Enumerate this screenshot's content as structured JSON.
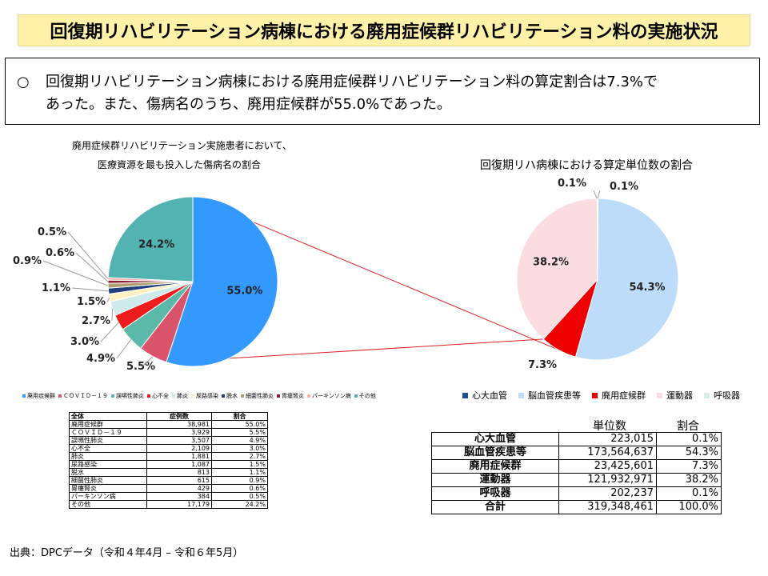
{
  "title": "回復期リハビリテーション病棟における廃用症候群リハビリテーション料の実施状況",
  "summary": {
    "bullet": "○",
    "line1": "回復期リハビリテーション病棟における廃用症候群リハビリテーション料の算定割合は7.3%で",
    "line2": "あった。また、傷病名のうち、廃用症候群が55.0%であった。"
  },
  "left_caption": {
    "line1": "廃用症候群リハビリテーション実施患者において、",
    "line2": "医療資源を最も投入した傷病名の割合"
  },
  "right_title": "回復期リハ病棟における算定単位数の割合",
  "chart_data": [
    {
      "type": "pie",
      "title": "",
      "slices": [
        {
          "label": "廃用症候群",
          "value": 55.0,
          "color": "#3399ff"
        },
        {
          "label": "ＣＯＶＩＤ－１９",
          "value": 5.5,
          "color": "#d9536a"
        },
        {
          "label": "誤嚥性肺炎",
          "value": 4.9,
          "color": "#5cb8a8"
        },
        {
          "label": "心不全",
          "value": 3.0,
          "color": "#ee1c1c"
        },
        {
          "label": "肺炎",
          "value": 2.7,
          "color": "#cfeaea"
        },
        {
          "label": "尿路感染",
          "value": 1.5,
          "color": "#fff2c2"
        },
        {
          "label": "脱水",
          "value": 1.1,
          "color": "#1f3f7a"
        },
        {
          "label": "細菌性肺炎",
          "value": 0.9,
          "color": "#b0a070"
        },
        {
          "label": "胃瘻腎炎",
          "value": 0.6,
          "color": "#8b1c2c"
        },
        {
          "label": "パーキンソン病",
          "value": 0.5,
          "color": "#ffb0b0"
        },
        {
          "label": "その他",
          "value": 24.2,
          "color": "#52b3b0"
        }
      ],
      "slice_labels": [
        "55.0%",
        "5.5%",
        "4.9%",
        "3.0%",
        "2.7%",
        "1.5%",
        "1.1%",
        "0.9%",
        "0.6%",
        "0.5%",
        "24.2%"
      ]
    },
    {
      "type": "pie",
      "title": "回復期リハ病棟における算定単位数の割合",
      "slices": [
        {
          "label": "心大血管",
          "value": 0.1,
          "color": "#1f4e8c"
        },
        {
          "label": "脳血管疾患等",
          "value": 54.3,
          "color": "#bcdcf9"
        },
        {
          "label": "廃用症候群",
          "value": 7.3,
          "color": "#ee0000"
        },
        {
          "label": "運動器",
          "value": 38.2,
          "color": "#fbdce0"
        },
        {
          "label": "呼吸器",
          "value": 0.1,
          "color": "#d4eeea"
        }
      ],
      "slice_labels": [
        "0.1%",
        "54.3%",
        "7.3%",
        "38.2%",
        "0.1%"
      ]
    }
  ],
  "left_legend": [
    "廃用症候群",
    "ＣＯＶＩＤ－１９",
    "誤嚥性肺炎",
    "心不全",
    "肺炎",
    "尿路感染",
    "脱水",
    "細菌性肺炎",
    "胃瘻腎炎",
    "パーキンソン病",
    "その他"
  ],
  "right_legend": [
    "心大血管",
    "脳血管疾患等",
    "廃用症候群",
    "運動器",
    "呼吸器"
  ],
  "left_table": {
    "headers": [
      "全体",
      "症例数",
      "割合"
    ],
    "rows": [
      [
        "廃用症候群",
        "38,981",
        "55.0%"
      ],
      [
        "ＣＯＶＩＤ－１９",
        "3,929",
        "5.5%"
      ],
      [
        "誤嚥性肺炎",
        "3,507",
        "4.9%"
      ],
      [
        "心不全",
        "2,109",
        "3.0%"
      ],
      [
        "肺炎",
        "1,881",
        "2.7%"
      ],
      [
        "尿路感染",
        "1,087",
        "1.5%"
      ],
      [
        "脱水",
        "813",
        "1.1%"
      ],
      [
        "細菌性肺炎",
        "615",
        "0.9%"
      ],
      [
        "胃瘻腎炎",
        "429",
        "0.6%"
      ],
      [
        "パーキンソン病",
        "384",
        "0.5%"
      ],
      [
        "その他",
        "17,179",
        "24.2%"
      ]
    ]
  },
  "right_table": {
    "headers": [
      "単位数",
      "割合"
    ],
    "rows": [
      [
        "心大血管",
        "223,015",
        "0.1%"
      ],
      [
        "脳血管疾患等",
        "173,564,637",
        "54.3%"
      ],
      [
        "廃用症候群",
        "23,425,601",
        "7.3%"
      ],
      [
        "運動器",
        "121,932,971",
        "38.2%"
      ],
      [
        "呼吸器",
        "202,237",
        "0.1%"
      ],
      [
        "合計",
        "319,348,461",
        "100.0%"
      ]
    ]
  },
  "source": "出典：DPCデータ（令和４年4月 – 令和６年5月）"
}
